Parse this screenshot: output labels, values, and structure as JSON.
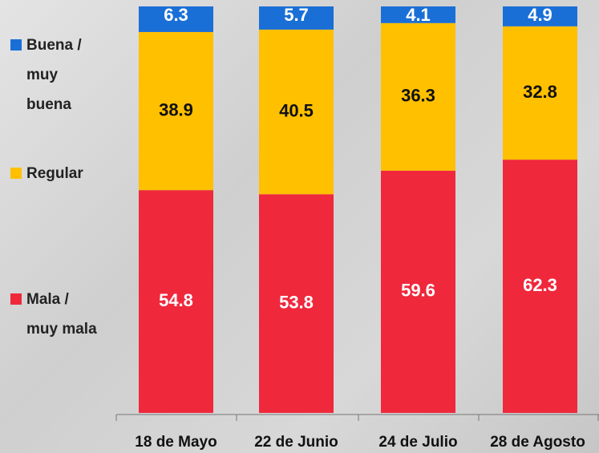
{
  "chart_data": {
    "type": "stacked_bar",
    "categories": [
      "18 de Mayo",
      "22 de Junio",
      "24 de Julio",
      "28 de Agosto"
    ],
    "series": [
      {
        "name": "Mala / muy mala",
        "color": "#f0283c",
        "values": [
          54.8,
          53.8,
          59.6,
          62.3
        ]
      },
      {
        "name": "Regular",
        "color": "#ffc000",
        "values": [
          38.9,
          40.5,
          36.3,
          32.8
        ]
      },
      {
        "name": "Buena / muy buena",
        "color": "#1a6fd6",
        "values": [
          6.3,
          5.7,
          4.1,
          4.9
        ]
      }
    ],
    "ylim": [
      0,
      100
    ]
  }
}
